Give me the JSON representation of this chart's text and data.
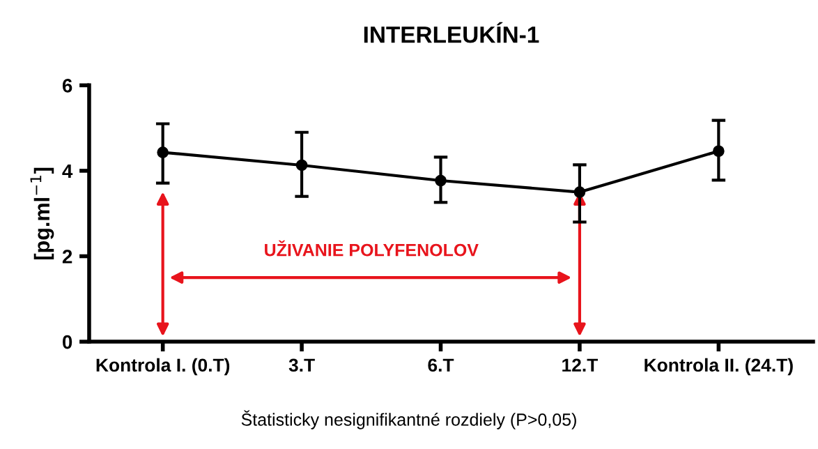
{
  "chart_data": {
    "type": "line",
    "title": "INTERLEUKÍN-1",
    "ylabel": "[pg.ml$^{−1}$]",
    "categories": [
      "Kontrola I. (0.T)",
      "3.T",
      "6.T",
      "12.T",
      "Kontrola II. (24.T)"
    ],
    "series": [
      {
        "color": "#000000",
        "values": [
          4.43,
          4.13,
          3.77,
          3.5,
          4.46
        ],
        "errors": [
          [
            3.71,
            5.1
          ],
          [
            3.4,
            4.9
          ],
          [
            3.26,
            4.32
          ],
          [
            2.8,
            4.14
          ],
          [
            3.78,
            5.18
          ]
        ]
      }
    ],
    "ylim": [
      0,
      6
    ],
    "yticks": [
      0,
      2,
      4,
      6
    ],
    "grid": false,
    "legend": false,
    "marker": "circle",
    "line_style": "solid",
    "annotations": [
      "UŽIVANIE POLYFENOLOV",
      "Štatisticky nesignifikantné rozdiely (P>0,05)"
    ]
  }
}
